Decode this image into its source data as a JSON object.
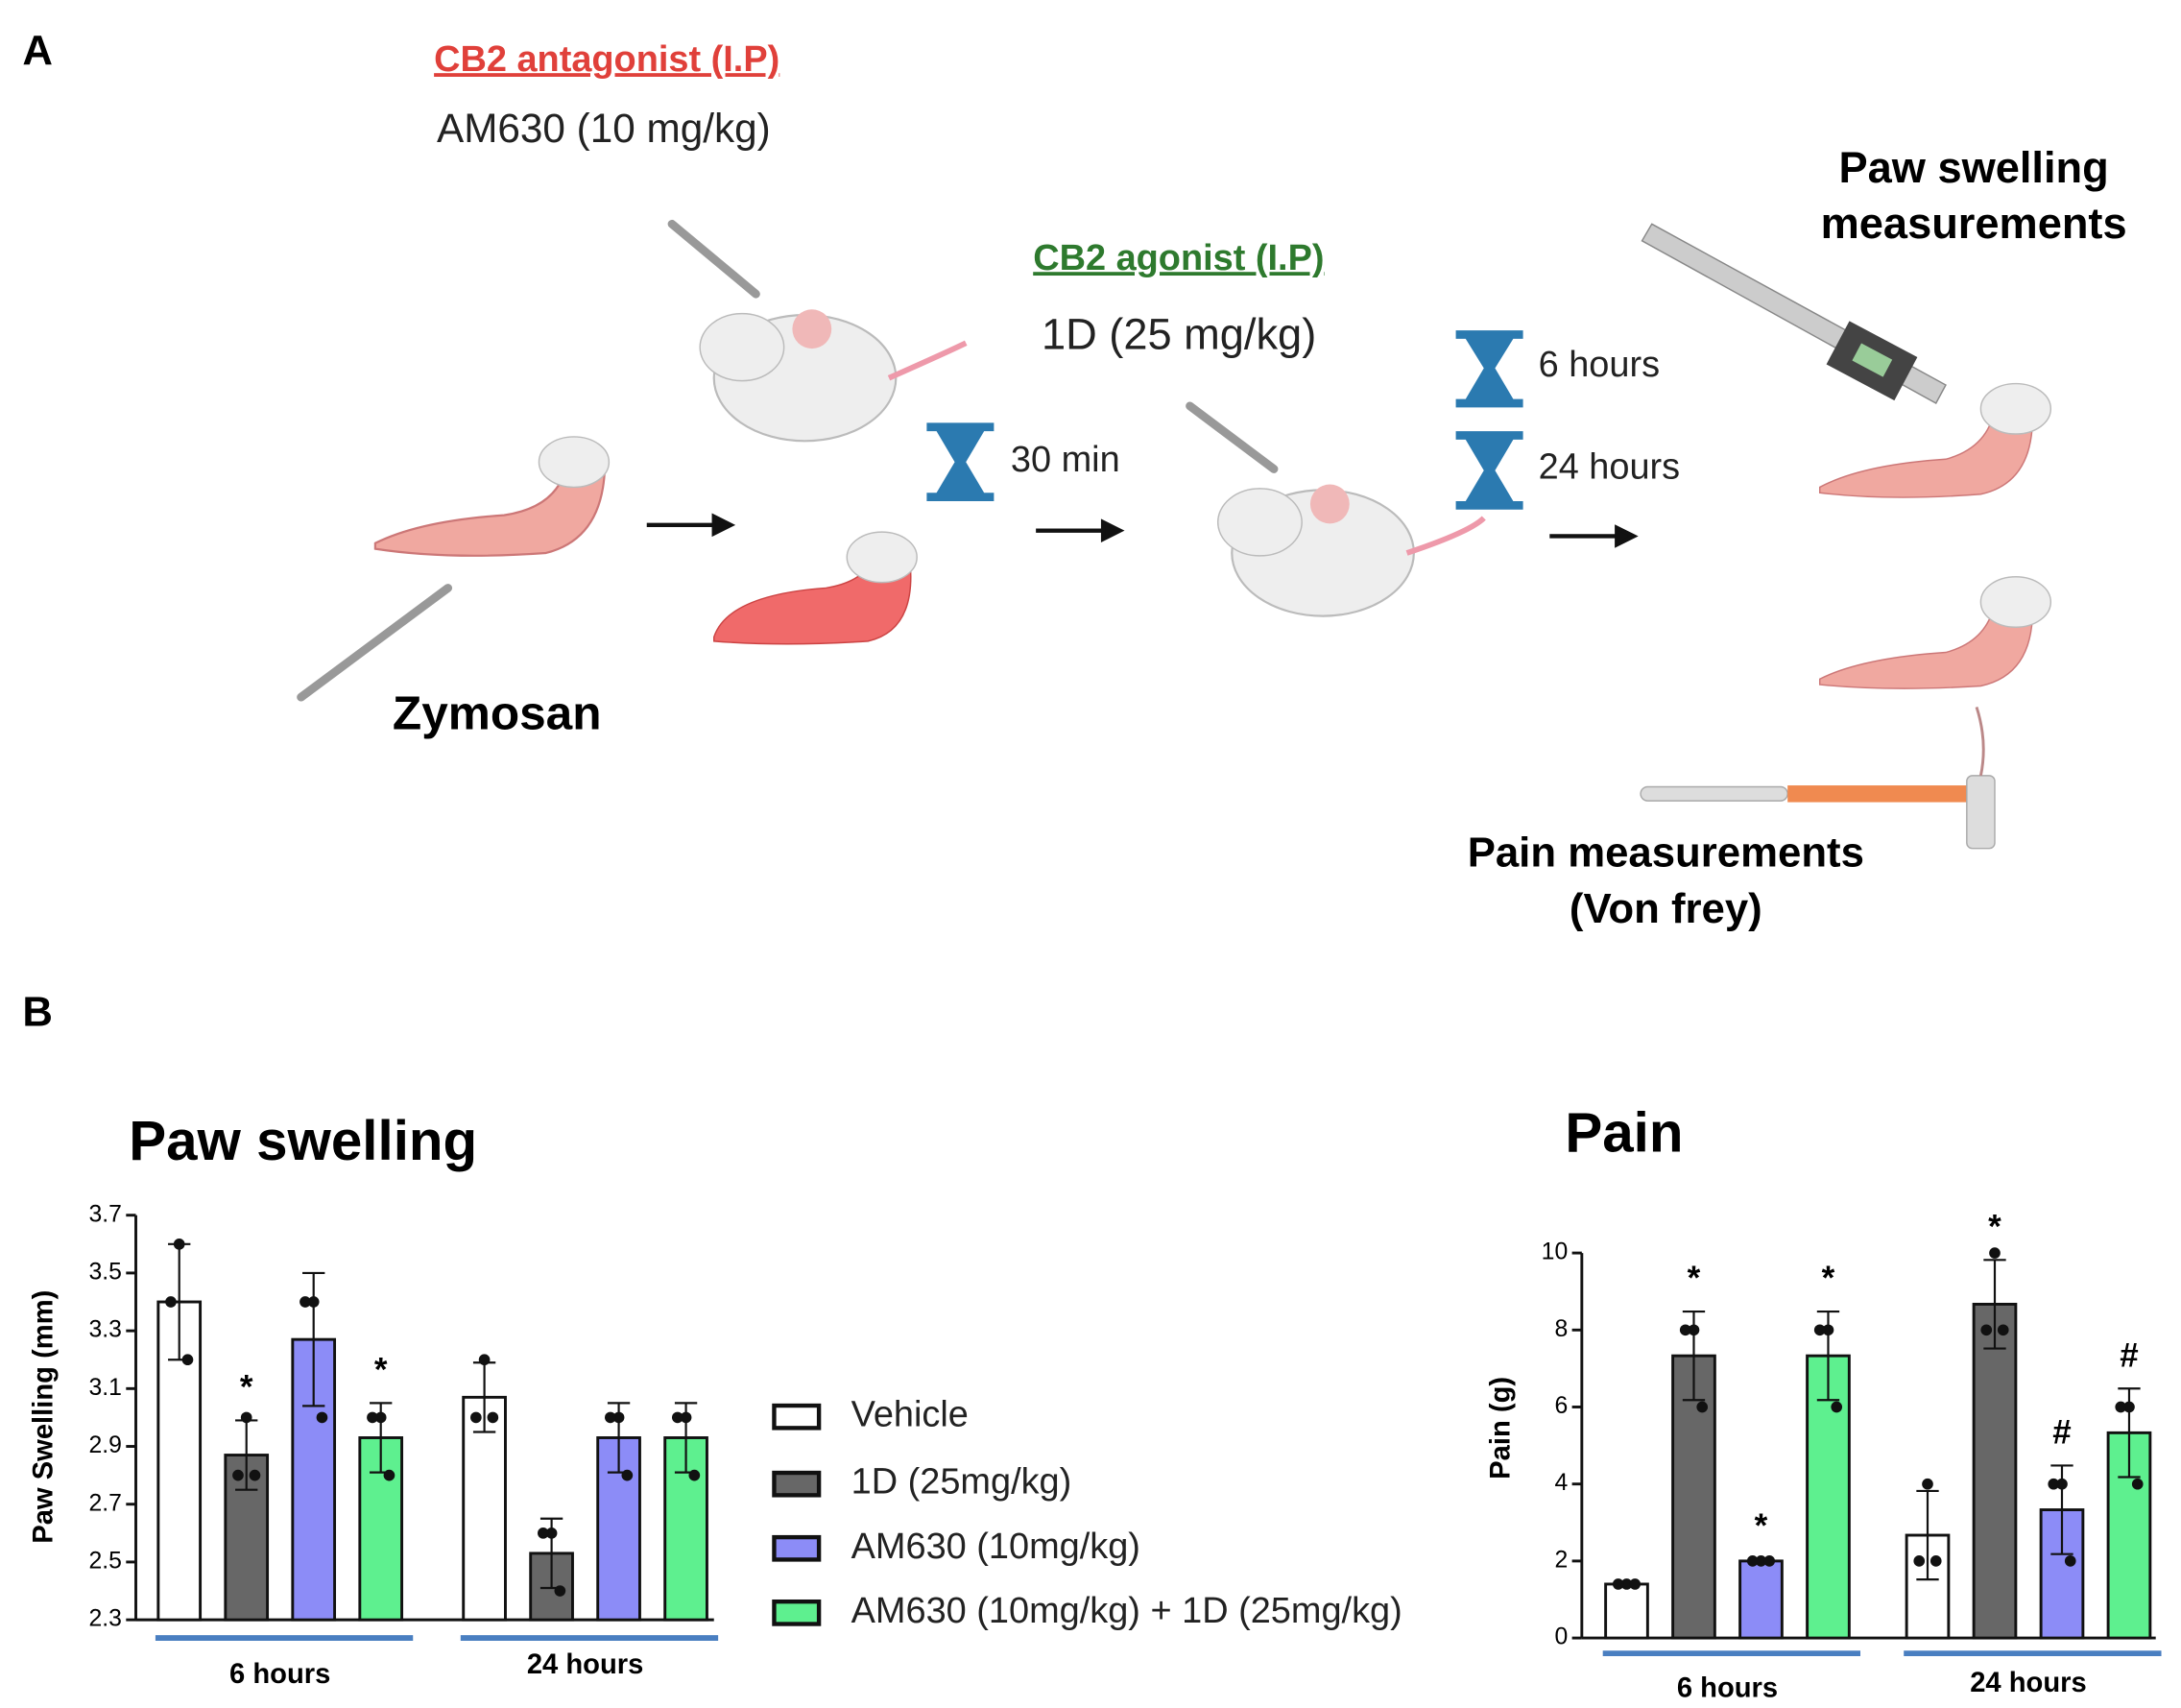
{
  "panel_a": {
    "label": "A",
    "antagonist": "CB2 antagonist (I.P)",
    "antagonist_dose": "AM630 (10 mg/kg)",
    "agonist": "CB2 agonist (I.P)",
    "agonist_dose": "1D (25 mg/kg)",
    "wait": "30 min",
    "time_1": "6 hours",
    "time_2": "24 hours",
    "swelling_1": "Paw swelling",
    "swelling_2": "measurements",
    "zymosan": "Zymosan",
    "pain_1": "Pain measurements",
    "pain_2": "(Von frey)"
  },
  "panel_b_label": "B",
  "chart_data": [
    {
      "type": "bar",
      "title": "Paw swelling",
      "y_label": "Paw Swelling (mm)",
      "categories": [
        "6 hours",
        "24 hours"
      ],
      "ylim": [
        2.3,
        3.7
      ],
      "yticks": [
        2.3,
        2.5,
        2.7,
        2.9,
        3.1,
        3.3,
        3.5,
        3.7
      ],
      "group_line_color": "#4a7fc1",
      "series": [
        {
          "name": "Vehicle",
          "color": "#ffffff",
          "values": [
            3.4,
            3.07
          ],
          "errors": [
            0.2,
            0.12
          ],
          "points": [
            [
              3.6,
              3.4,
              3.2
            ],
            [
              3.2,
              3.0,
              3.0
            ]
          ],
          "markers": [
            null,
            null
          ]
        },
        {
          "name": "1D (25mg/kg)",
          "color": "#676767",
          "values": [
            2.87,
            2.53
          ],
          "errors": [
            0.12,
            0.12
          ],
          "points": [
            [
              3.0,
              2.8,
              2.8
            ],
            [
              2.6,
              2.6,
              2.4
            ]
          ],
          "markers": [
            "*",
            null
          ]
        },
        {
          "name": "AM630 (10mg/kg)",
          "color": "#8c8cf7",
          "values": [
            3.27,
            2.93
          ],
          "errors": [
            0.23,
            0.12
          ],
          "points": [
            [
              3.4,
              3.4,
              3.0
            ],
            [
              3.0,
              3.0,
              2.8
            ]
          ],
          "markers": [
            null,
            null
          ]
        },
        {
          "name": "AM630 (10mg/kg) + 1D (25mg/kg)",
          "color": "#5ef08f",
          "values": [
            2.93,
            2.93
          ],
          "errors": [
            0.12,
            0.12
          ],
          "points": [
            [
              3.0,
              3.0,
              2.8
            ],
            [
              3.0,
              3.0,
              2.8
            ]
          ],
          "markers": [
            "*",
            null
          ]
        }
      ]
    },
    {
      "type": "bar",
      "title": "Pain",
      "y_label": "Pain (g)",
      "categories": [
        "6 hours",
        "24 hours"
      ],
      "ylim": [
        0,
        10
      ],
      "yticks": [
        0,
        2,
        4,
        6,
        8,
        10
      ],
      "group_line_color": "#4a7fc1",
      "series": [
        {
          "name": "Vehicle",
          "color": "#ffffff",
          "values": [
            1.4,
            2.67
          ],
          "errors": [
            0.05,
            1.15
          ],
          "points": [
            [
              1.4,
              1.4,
              1.4
            ],
            [
              4,
              2,
              2
            ]
          ],
          "markers": [
            null,
            null
          ]
        },
        {
          "name": "1D (25mg/kg)",
          "color": "#676767",
          "values": [
            7.33,
            8.67
          ],
          "errors": [
            1.15,
            1.15
          ],
          "points": [
            [
              8,
              8,
              6
            ],
            [
              10,
              8,
              8
            ]
          ],
          "markers": [
            "*",
            "*"
          ]
        },
        {
          "name": "AM630 (10mg/kg)",
          "color": "#8c8cf7",
          "values": [
            2.0,
            3.33
          ],
          "errors": [
            0.05,
            1.15
          ],
          "points": [
            [
              2,
              2,
              2
            ],
            [
              4,
              4,
              2
            ]
          ],
          "markers": [
            "*",
            "#"
          ]
        },
        {
          "name": "AM630 (10mg/kg) + 1D (25mg/kg)",
          "color": "#5ef08f",
          "values": [
            7.33,
            5.33
          ],
          "errors": [
            1.15,
            1.15
          ],
          "points": [
            [
              8,
              8,
              6
            ],
            [
              6,
              6,
              4
            ]
          ],
          "markers": [
            "*",
            "#"
          ]
        }
      ]
    }
  ]
}
